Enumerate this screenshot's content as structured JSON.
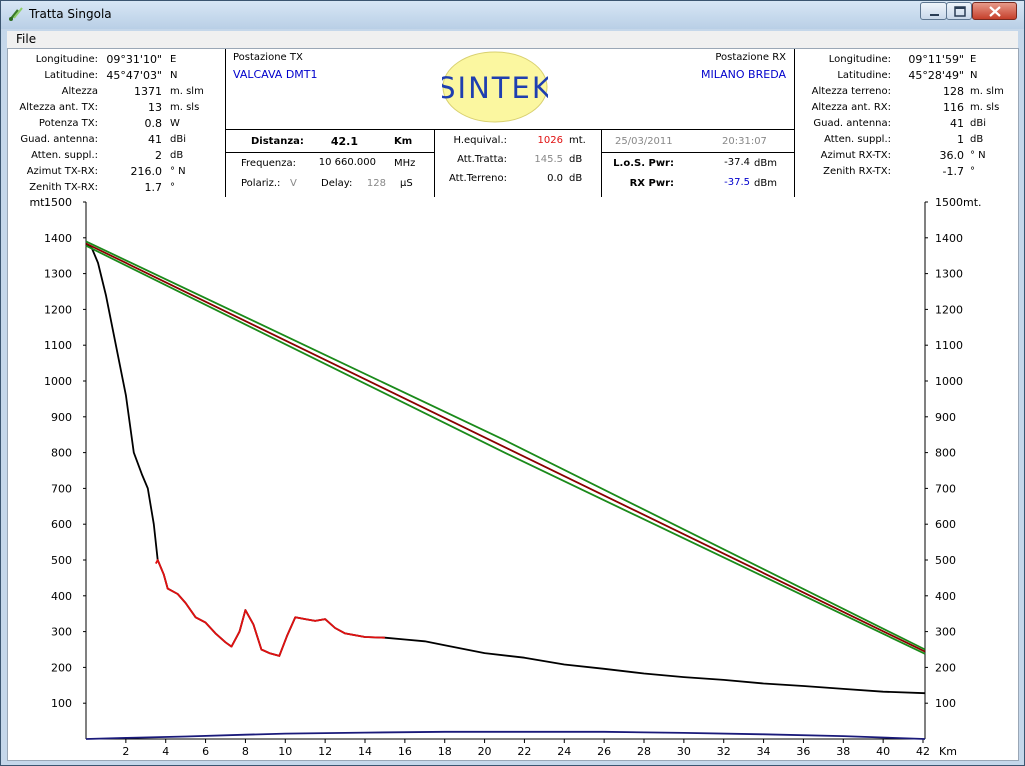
{
  "window": {
    "title": "Tratta Singola",
    "menu_file": "File"
  },
  "tx_side": {
    "rows": [
      {
        "label": "Longitudine:",
        "value": "09°31'10\"",
        "unit": "E"
      },
      {
        "label": "Latitudine:",
        "value": "45°47'03\"",
        "unit": "N"
      },
      {
        "label": "Altezza",
        "value": "1371",
        "unit": "m. slm"
      },
      {
        "label": "Altezza ant. TX:",
        "value": "13",
        "unit": "m. sls"
      },
      {
        "label": "Potenza TX:",
        "value": "0.8",
        "unit": "W"
      },
      {
        "label": "Guad. antenna:",
        "value": "41",
        "unit": "dBi"
      },
      {
        "label": "Atten. suppl.:",
        "value": "2",
        "unit": "dB"
      },
      {
        "label": "Azimut TX-RX:",
        "value": "216.0",
        "unit": "° N"
      },
      {
        "label": "Zenith TX-RX:",
        "value": "1.7",
        "unit": "°"
      }
    ]
  },
  "rx_side": {
    "rows": [
      {
        "label": "Longitudine:",
        "value": "09°11'59\"",
        "unit": "E"
      },
      {
        "label": "Latitudine:",
        "value": "45°28'49\"",
        "unit": "N"
      },
      {
        "label": "Altezza terreno:",
        "value": "128",
        "unit": "m. slm"
      },
      {
        "label": "Altezza ant. RX:",
        "value": "116",
        "unit": "m. sls"
      },
      {
        "label": "Guad. antenna:",
        "value": "41",
        "unit": "dBi"
      },
      {
        "label": "Atten. suppl.:",
        "value": "1",
        "unit": "dB"
      },
      {
        "label": "Azimut RX-TX:",
        "value": "36.0",
        "unit": "° N"
      },
      {
        "label": "Zenith RX-TX:",
        "value": "-1.7",
        "unit": "°"
      }
    ]
  },
  "center": {
    "tx_station_label": "Postazione TX",
    "tx_station_name": "VALCAVA DMT1",
    "rx_station_label": "Postazione RX",
    "rx_station_name": "MILANO BREDA",
    "logo_text": "SINTEK",
    "distanza_label": "Distanza:",
    "distanza_value": "42.1",
    "distanza_unit": "Km",
    "frequenza_label": "Frequenza:",
    "frequenza_value": "10 660.000",
    "frequenza_unit": "MHz",
    "polariz_label": "Polariz.:",
    "polariz_value": "V",
    "delay_label": "Delay:",
    "delay_value": "128",
    "delay_unit": "µS",
    "hequiv_label": "H.equival.:",
    "hequiv_value": "1026",
    "hequiv_unit": "mt.",
    "atttratta_label": "Att.Tratta:",
    "atttratta_value": "145.5",
    "atttratta_unit": "dB",
    "attterreno_label": "Att.Terreno:",
    "attterreno_value": "0.0",
    "attterreno_unit": "dB",
    "date": "25/03/2011",
    "time": "20:31:07",
    "los_label": "L.o.S. Pwr:",
    "los_value": "-37.4",
    "los_unit": "dBm",
    "rx_label": "RX Pwr:",
    "rx_value": "-37.5",
    "rx_unit": "dBm"
  },
  "chart_data": {
    "type": "line",
    "y_unit_left": "mt.",
    "y_unit_right": "mt.",
    "x_unit": "Km",
    "xlim": [
      0,
      42.1
    ],
    "ylim": [
      0,
      1500
    ],
    "x_ticks": [
      2,
      4,
      6,
      8,
      10,
      12,
      14,
      16,
      18,
      20,
      22,
      24,
      26,
      28,
      30,
      32,
      34,
      36,
      38,
      40,
      42
    ],
    "y_ticks": [
      100,
      200,
      300,
      400,
      500,
      600,
      700,
      800,
      900,
      1000,
      1100,
      1200,
      1300,
      1400,
      1500
    ],
    "series": [
      {
        "color": "#000000",
        "points": [
          [
            0,
            1384
          ],
          [
            0.3,
            1370
          ],
          [
            0.6,
            1330
          ],
          [
            1,
            1240
          ],
          [
            1.5,
            1100
          ],
          [
            2,
            960
          ],
          [
            2.4,
            800
          ],
          [
            2.8,
            740
          ],
          [
            3.1,
            700
          ],
          [
            3.4,
            600
          ],
          [
            3.6,
            500
          ],
          [
            3.9,
            460
          ],
          [
            4.1,
            420
          ],
          [
            4.6,
            405
          ],
          [
            5,
            380
          ],
          [
            5.5,
            340
          ],
          [
            6,
            325
          ],
          [
            6.5,
            295
          ],
          [
            7,
            270
          ],
          [
            7.3,
            258
          ],
          [
            7.7,
            300
          ],
          [
            8,
            360
          ],
          [
            8.4,
            320
          ],
          [
            8.8,
            250
          ],
          [
            9.2,
            240
          ],
          [
            9.7,
            232
          ],
          [
            10.1,
            290
          ],
          [
            10.5,
            340
          ],
          [
            11,
            335
          ],
          [
            11.5,
            330
          ],
          [
            12,
            335
          ],
          [
            12.5,
            310
          ],
          [
            13,
            295
          ],
          [
            14,
            285
          ],
          [
            15,
            283
          ],
          [
            16,
            278
          ],
          [
            17,
            273
          ],
          [
            18,
            262
          ],
          [
            20,
            240
          ],
          [
            22,
            227
          ],
          [
            24,
            208
          ],
          [
            26,
            196
          ],
          [
            28,
            183
          ],
          [
            30,
            173
          ],
          [
            32,
            165
          ],
          [
            34,
            155
          ],
          [
            36,
            148
          ],
          [
            38,
            140
          ],
          [
            40,
            132
          ],
          [
            42.1,
            128
          ]
        ]
      },
      {
        "color": "#e01010",
        "points": [
          [
            3.5,
            490
          ],
          [
            3.6,
            500
          ],
          [
            3.9,
            460
          ],
          [
            4.1,
            420
          ],
          [
            4.6,
            405
          ],
          [
            5,
            380
          ],
          [
            5.5,
            340
          ],
          [
            6,
            325
          ],
          [
            6.5,
            295
          ],
          [
            7,
            270
          ],
          [
            7.3,
            258
          ],
          [
            7.7,
            300
          ],
          [
            8,
            360
          ],
          [
            8.4,
            320
          ],
          [
            8.8,
            250
          ],
          [
            9.2,
            240
          ],
          [
            9.7,
            232
          ],
          [
            10.1,
            290
          ],
          [
            10.5,
            340
          ],
          [
            11,
            335
          ],
          [
            11.5,
            330
          ],
          [
            12,
            335
          ],
          [
            12.5,
            310
          ],
          [
            13,
            295
          ],
          [
            14,
            285
          ],
          [
            15,
            283
          ]
        ]
      },
      {
        "color": "#8b0000",
        "points": [
          [
            0,
            1384
          ],
          [
            42.1,
            244
          ]
        ]
      },
      {
        "color": "#1a8a1a",
        "points": [
          [
            0,
            1390
          ],
          [
            21,
            835
          ],
          [
            42.1,
            250
          ]
        ]
      },
      {
        "color": "#1a8a1a",
        "points": [
          [
            0,
            1378
          ],
          [
            21,
            800
          ],
          [
            42.1,
            238
          ]
        ]
      },
      {
        "color": "#1a1a7a",
        "points": [
          [
            0,
            0
          ],
          [
            2,
            3
          ],
          [
            5,
            7
          ],
          [
            8,
            12
          ],
          [
            10,
            15
          ],
          [
            14,
            18
          ],
          [
            18,
            20
          ],
          [
            22,
            20
          ],
          [
            26,
            20
          ],
          [
            30,
            17
          ],
          [
            34,
            13
          ],
          [
            38,
            8
          ],
          [
            42.1,
            0
          ]
        ]
      }
    ]
  }
}
